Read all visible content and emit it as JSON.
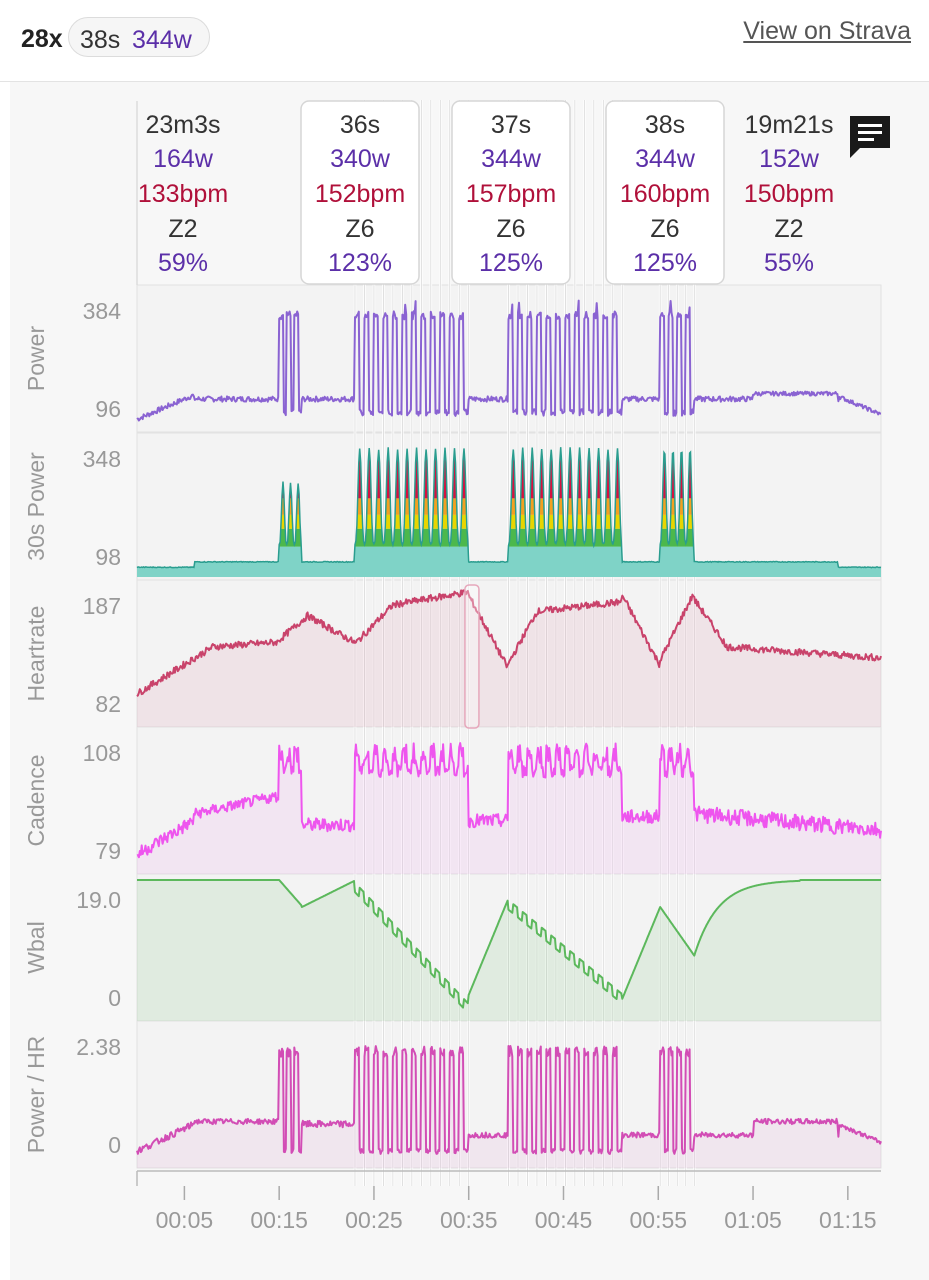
{
  "header": {
    "count": "28x",
    "interval_duration": "38s",
    "interval_power": "344w",
    "strava_link": "View on Strava"
  },
  "intervals": [
    {
      "duration": "23m3s",
      "power": "164w",
      "heartrate": "133bpm",
      "zone": "Z2",
      "percent": "59%",
      "boxed": false
    },
    {
      "duration": "36s",
      "power": "340w",
      "heartrate": "152bpm",
      "zone": "Z6",
      "percent": "123%",
      "boxed": true
    },
    {
      "duration": "37s",
      "power": "344w",
      "heartrate": "157bpm",
      "zone": "Z6",
      "percent": "125%",
      "boxed": true
    },
    {
      "duration": "38s",
      "power": "344w",
      "heartrate": "160bpm",
      "zone": "Z6",
      "percent": "125%",
      "boxed": true
    },
    {
      "duration": "19m21s",
      "power": "152w",
      "heartrate": "150bpm",
      "zone": "Z2",
      "percent": "55%",
      "boxed": false
    }
  ],
  "charts": [
    {
      "label": "Power",
      "y_max": "384",
      "y_min": "96"
    },
    {
      "label": "30s Power",
      "y_max": "348",
      "y_min": "98"
    },
    {
      "label": "Heartrate",
      "y_max": "187",
      "y_min": "82"
    },
    {
      "label": "Cadence",
      "y_max": "108",
      "y_min": "79"
    },
    {
      "label": "Wbal",
      "y_max": "19.0",
      "y_min": "0"
    },
    {
      "label": "Power / HR",
      "y_max": "2.38",
      "y_min": "0"
    }
  ],
  "x_ticks": [
    "00:05",
    "00:15",
    "00:25",
    "00:35",
    "00:45",
    "00:55",
    "01:05",
    "01:15"
  ],
  "colors": {
    "power": "#8a63d2",
    "heartrate": "#c9436b",
    "cadence": "#ee55ee",
    "wbal": "#5cb85c",
    "powerhr": "#d24db5",
    "teal": "#2a9d8f",
    "purple_text": "#5b2fa8",
    "red_text": "#b0103a"
  },
  "icons": [
    "comment-icon"
  ]
}
